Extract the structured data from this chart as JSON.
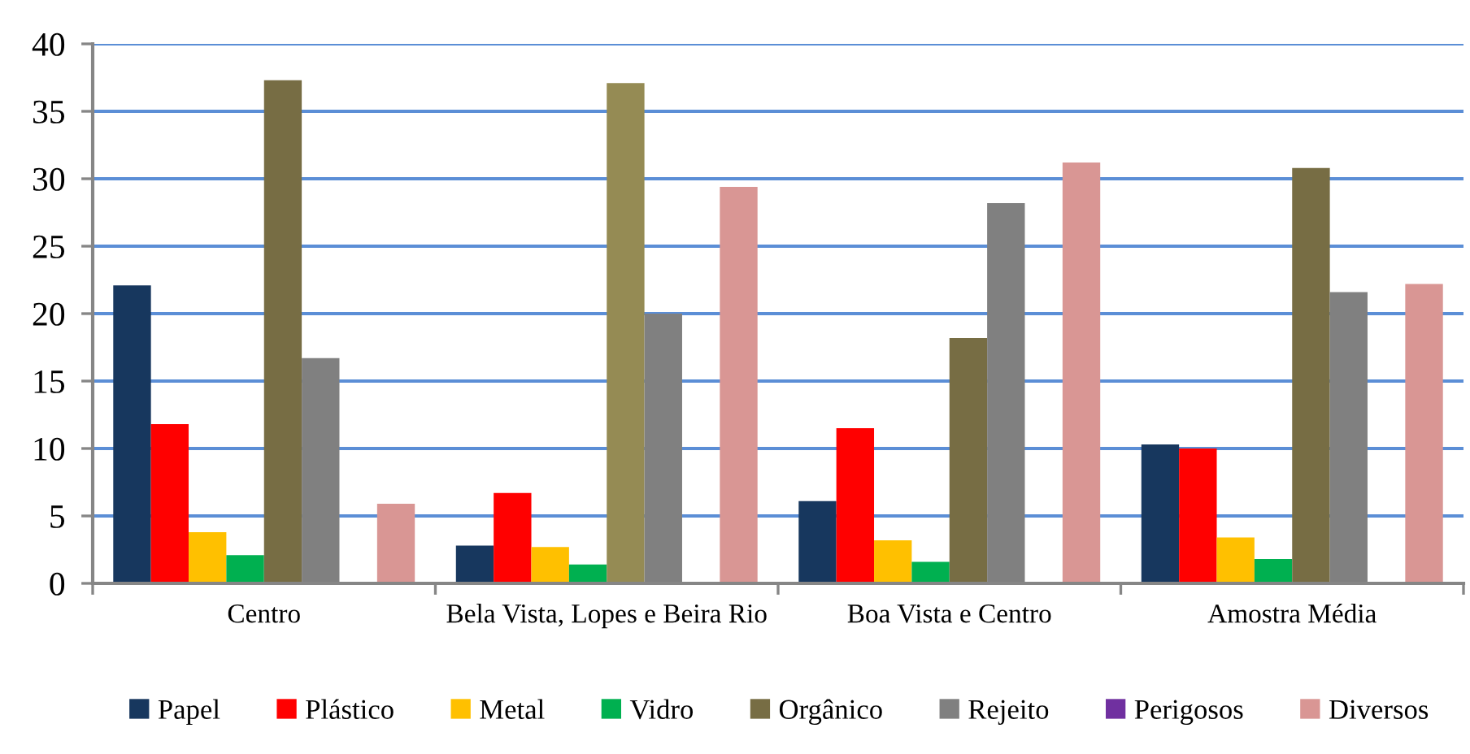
{
  "chart_data": {
    "type": "bar",
    "categories": [
      "Centro",
      "Bela Vista, Lopes e Beira Rio",
      "Boa Vista e Centro",
      "Amostra Média"
    ],
    "series": [
      {
        "name": "Papel",
        "color": "#17375e",
        "values": [
          22.1,
          2.8,
          6.1,
          10.3
        ]
      },
      {
        "name": "Plástico",
        "color": "#ff0000",
        "values": [
          11.8,
          6.7,
          11.5,
          10.0
        ]
      },
      {
        "name": "Metal",
        "color": "#ffc000",
        "values": [
          3.8,
          2.7,
          3.2,
          3.4
        ]
      },
      {
        "name": "Vidro",
        "color": "#00b050",
        "values": [
          2.1,
          1.4,
          1.6,
          1.8
        ]
      },
      {
        "name": "Orgânico",
        "color": "#776d44",
        "colors": [
          "#776d44",
          "#958b54",
          "#776d44",
          "#776d44"
        ],
        "values": [
          37.3,
          37.1,
          18.2,
          30.8
        ]
      },
      {
        "name": "Rejeito",
        "color": "#808080",
        "values": [
          16.7,
          20.0,
          28.2,
          21.6
        ]
      },
      {
        "name": "Perigosos",
        "color": "#7030a0",
        "values": [
          0,
          0,
          0,
          0
        ]
      },
      {
        "name": "Diversos",
        "color": "#d99694",
        "values": [
          5.9,
          29.4,
          31.2,
          22.2
        ]
      }
    ],
    "ylim": [
      0,
      40
    ],
    "yticks": [
      0,
      5,
      10,
      15,
      20,
      25,
      30,
      35,
      40
    ],
    "grid": "y",
    "legend": "bottom"
  }
}
